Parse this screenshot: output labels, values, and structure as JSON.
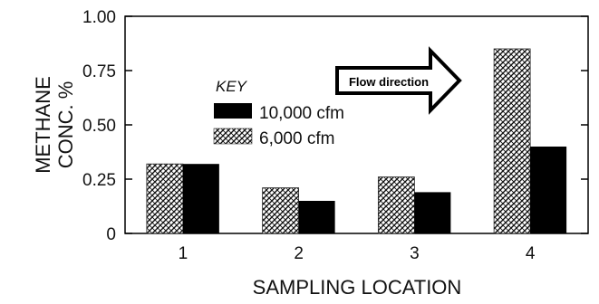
{
  "chart_data": {
    "type": "bar",
    "title": "",
    "xlabel": "SAMPLING LOCATION",
    "ylabel_lines": [
      "METHANE",
      "CONC. %"
    ],
    "categories": [
      "1",
      "2",
      "3",
      "4"
    ],
    "ylim": [
      0,
      1.0
    ],
    "yticks": [
      0,
      0.25,
      0.5,
      0.75,
      1.0
    ],
    "ytick_labels": [
      "0",
      "0.25",
      "0.50",
      "0.75",
      "1.00"
    ],
    "grid": false,
    "legend_placement": "center-left",
    "legend_title": "KEY",
    "annotation": "Flow direction",
    "series": [
      {
        "name": "6,000 cfm",
        "values": [
          0.32,
          0.21,
          0.26,
          0.85
        ],
        "fill": "hatched"
      },
      {
        "name": "10,000 cfm",
        "values": [
          0.32,
          0.15,
          0.19,
          0.4
        ],
        "fill": "#000000"
      }
    ],
    "legend_entries": [
      {
        "name": "10,000 cfm",
        "fill": "#000000"
      },
      {
        "name": "6,000 cfm",
        "fill": "hatched"
      }
    ]
  },
  "colors": {
    "axis": "#000000",
    "text": "#111111",
    "solid_bar": "#000000",
    "hatch_fg": "#111111",
    "hatch_bg": "#ffffff"
  }
}
